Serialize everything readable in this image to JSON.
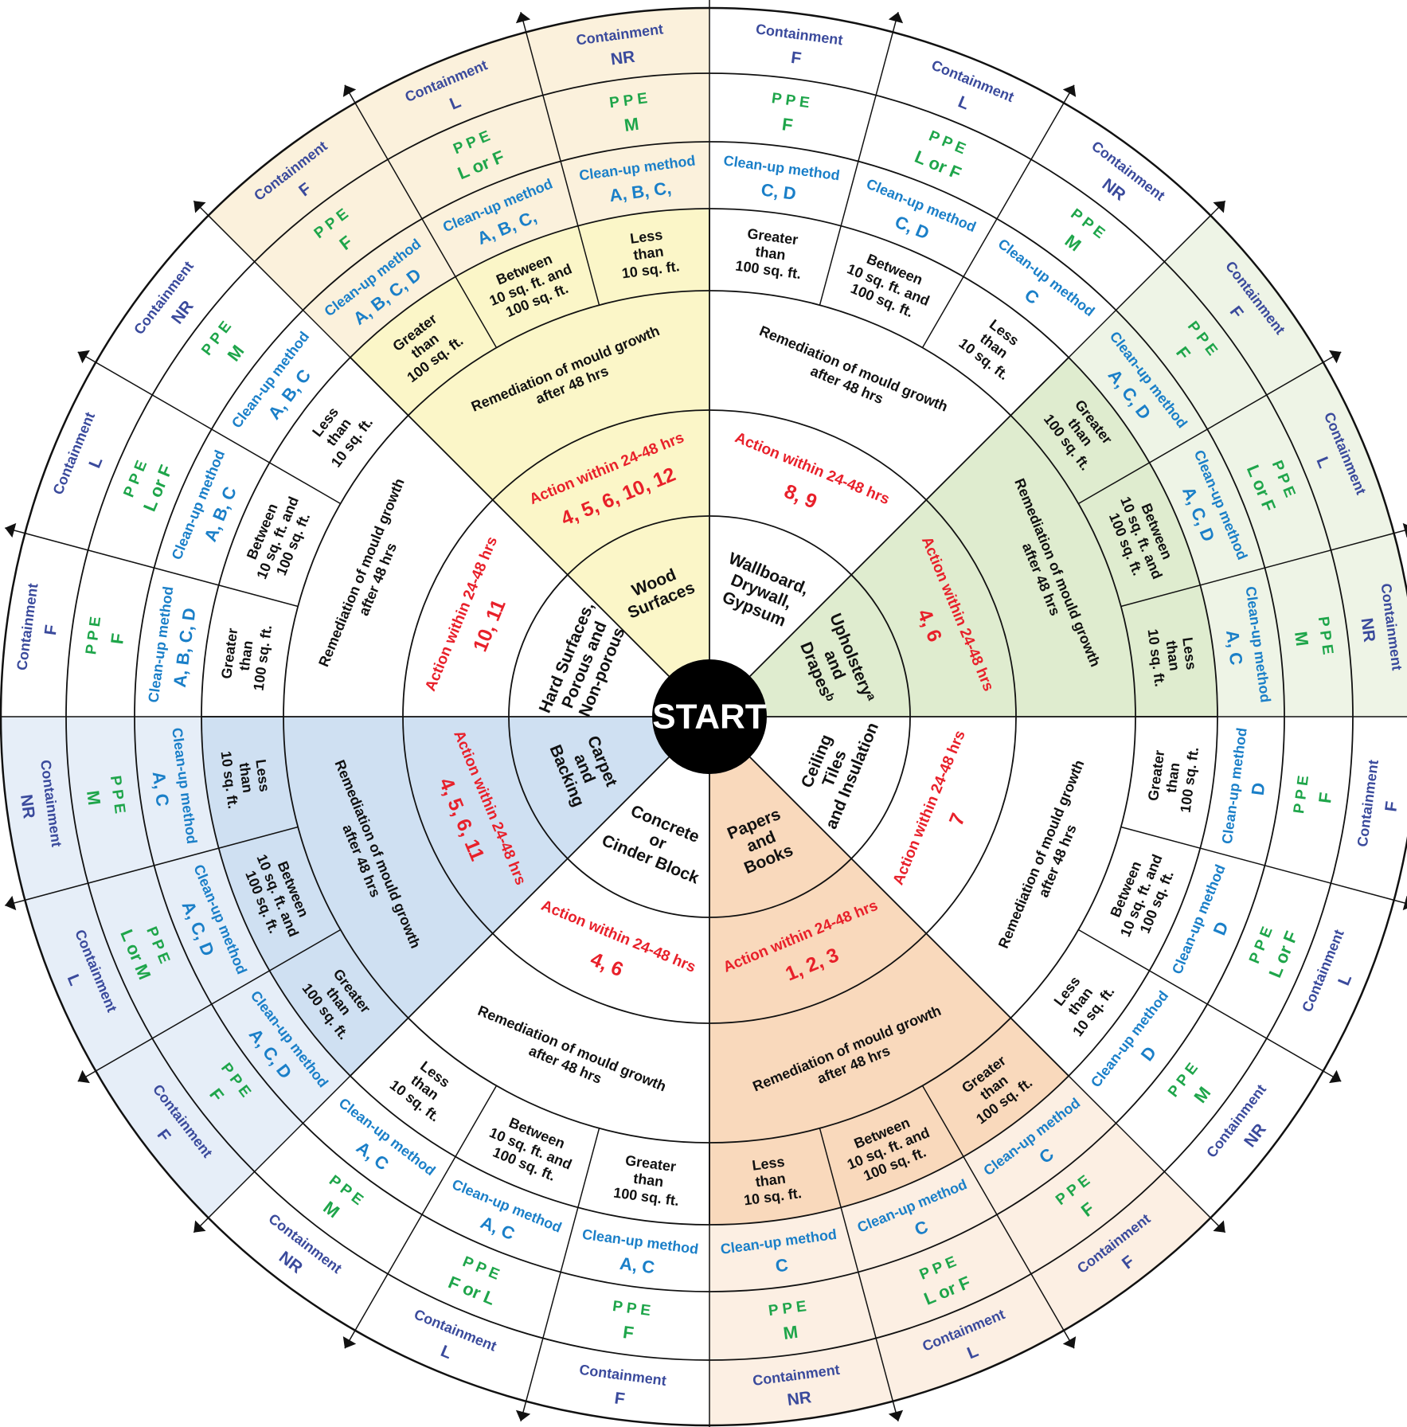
{
  "center": {
    "label": "START"
  },
  "colors": {
    "wood": "#fbf6c8",
    "wood_outer": "#fbf1dc",
    "upholstery": "#dfeccf",
    "upholstery_outer": "#eef4e6",
    "papers": "#f9d9bc",
    "papers_outer": "#fcefe3",
    "carpet": "#cfe0f2",
    "carpet_outer": "#e6eef8",
    "white": "#ffffff",
    "line": "#111111",
    "start_fill": "#000000"
  },
  "segments": [
    {
      "id": "wood",
      "material": [
        "Wood",
        "Surfaces"
      ],
      "action": "Action within 24-48 hrs",
      "action_nums": "4, 5, 6, 10, 12",
      "remediation": [
        "Remediation of mould growth",
        "after 48 hrs"
      ],
      "tiers": [
        {
          "size": [
            "Greater",
            "than",
            "100 sq. ft."
          ],
          "cleanup": "A, B, C, D",
          "ppe": "F",
          "containment": "F"
        },
        {
          "size": [
            "Between",
            "10 sq. ft. and",
            "100 sq. ft."
          ],
          "cleanup": "A, B, C,",
          "ppe": "L or F",
          "containment": "L"
        },
        {
          "size": [
            "Less",
            "than",
            "10 sq. ft."
          ],
          "cleanup": "A, B, C,",
          "ppe": "M",
          "containment": "NR"
        }
      ]
    },
    {
      "id": "wallboard",
      "material": [
        "Wallboard,",
        "Drywall,",
        "Gypsum"
      ],
      "action": "Action within 24-48 hrs",
      "action_nums": "8, 9",
      "remediation": [
        "Remediation of mould growth",
        "after 48 hrs"
      ],
      "tiers": [
        {
          "size": [
            "Greater",
            "than",
            "100 sq. ft."
          ],
          "cleanup": "C, D",
          "ppe": "F",
          "containment": "F"
        },
        {
          "size": [
            "Between",
            "10 sq. ft. and",
            "100 sq. ft."
          ],
          "cleanup": "C, D",
          "ppe": "L or F",
          "containment": "L"
        },
        {
          "size": [
            "Less",
            "than",
            "10 sq. ft."
          ],
          "cleanup": "C",
          "ppe": "M",
          "containment": "NR"
        }
      ]
    },
    {
      "id": "upholstery",
      "material": [
        "Upholsteryᵃ",
        "and",
        "Drapesᵇ"
      ],
      "action": "Action within 24-48 hrs",
      "action_nums": "4, 6",
      "remediation": [
        "Remediation of mould growth",
        "after 48 hrs"
      ],
      "tiers": [
        {
          "size": [
            "Greater",
            "than",
            "100 sq. ft."
          ],
          "cleanup": "A, C, D",
          "ppe": "F",
          "containment": "F"
        },
        {
          "size": [
            "Between",
            "10 sq. ft. and",
            "100 sq. ft."
          ],
          "cleanup": "A, C, D",
          "ppe": "L or F",
          "containment": "L"
        },
        {
          "size": [
            "Less",
            "than",
            "10 sq. ft."
          ],
          "cleanup": "A, C",
          "ppe": "M",
          "containment": "NR"
        }
      ]
    },
    {
      "id": "ceiling",
      "material": [
        "Ceiling",
        "Tiles",
        "and Insulation"
      ],
      "action": "Action within 24-48 hrs",
      "action_nums": "7",
      "remediation": [
        "Remediation of mould growth",
        "after 48 hrs"
      ],
      "tiers": [
        {
          "size": [
            "Greater",
            "than",
            "100 sq. ft."
          ],
          "cleanup": "D",
          "ppe": "F",
          "containment": "F"
        },
        {
          "size": [
            "Between",
            "10 sq. ft. and",
            "100 sq. ft."
          ],
          "cleanup": "D",
          "ppe": "L or F",
          "containment": "L"
        },
        {
          "size": [
            "Less",
            "than",
            "10 sq. ft."
          ],
          "cleanup": "D",
          "ppe": "M",
          "containment": "NR"
        }
      ]
    },
    {
      "id": "papers",
      "material": [
        "Papers",
        "and",
        "Books"
      ],
      "action": "Action within 24-48 hrs",
      "action_nums": "1, 2, 3",
      "remediation": [
        "Remediation of mould growth",
        "after 48 hrs"
      ],
      "tiers": [
        {
          "size": [
            "Greater",
            "than",
            "100 sq. ft."
          ],
          "cleanup": "C",
          "ppe": "F",
          "containment": "F"
        },
        {
          "size": [
            "Between",
            "10 sq. ft. and",
            "100 sq. ft."
          ],
          "cleanup": "C",
          "ppe": "L or F",
          "containment": "L"
        },
        {
          "size": [
            "Less",
            "than",
            "10 sq. ft."
          ],
          "cleanup": "C",
          "ppe": "M",
          "containment": "NR"
        }
      ]
    },
    {
      "id": "concrete",
      "material": [
        "Concrete",
        "or",
        "Cinder Block"
      ],
      "action": "Action within 24-48 hrs",
      "action_nums": "4, 6",
      "remediation": [
        "Remediation of mould growth",
        "after 48 hrs"
      ],
      "tiers": [
        {
          "size": [
            "Greater",
            "than",
            "100 sq. ft."
          ],
          "cleanup": "A, C",
          "ppe": "F",
          "containment": "F"
        },
        {
          "size": [
            "Between",
            "10 sq. ft. and",
            "100 sq. ft."
          ],
          "cleanup": "A, C",
          "ppe": "F or L",
          "containment": "L"
        },
        {
          "size": [
            "Less",
            "than",
            "10 sq. ft."
          ],
          "cleanup": "A, C",
          "ppe": "M",
          "containment": "NR"
        }
      ]
    },
    {
      "id": "carpet",
      "material": [
        "Carpet",
        "and",
        "Backing"
      ],
      "action": "Action within 24-48 hrs",
      "action_nums": "4, 5, 6, 11",
      "remediation": [
        "Remediation of mould growth",
        "after 48 hrs"
      ],
      "tiers": [
        {
          "size": [
            "Greater",
            "than",
            "100 sq. ft."
          ],
          "cleanup": "A, C, D",
          "ppe": "F",
          "containment": "F"
        },
        {
          "size": [
            "Between",
            "10 sq. ft. and",
            "100 sq. ft."
          ],
          "cleanup": "A, C, D",
          "ppe": "L or M",
          "containment": "L"
        },
        {
          "size": [
            "Less",
            "than",
            "10 sq. ft."
          ],
          "cleanup": "A, C",
          "ppe": "M",
          "containment": "NR"
        }
      ]
    },
    {
      "id": "hard",
      "material": [
        "Hard Surfaces,",
        "Porous and",
        "Non-porous"
      ],
      "action": "Action within 24-48 hrs",
      "action_nums": "10, 11",
      "remediation": [
        "Remediation of mould growth",
        "after 48 hrs"
      ],
      "tiers": [
        {
          "size": [
            "Greater",
            "than",
            "100 sq. ft."
          ],
          "cleanup": "A, B, C, D",
          "ppe": "F",
          "containment": "F"
        },
        {
          "size": [
            "Between",
            "10 sq. ft. and",
            "100 sq. ft."
          ],
          "cleanup": "A, B, C",
          "ppe": "L or F",
          "containment": "L"
        },
        {
          "size": [
            "Less",
            "than",
            "10 sq. ft."
          ],
          "cleanup": "A, B, C",
          "ppe": "M",
          "containment": "NR"
        }
      ]
    }
  ],
  "labels": {
    "cleanup": "Clean-up method",
    "ppe": "P P E",
    "containment": "Containment"
  }
}
